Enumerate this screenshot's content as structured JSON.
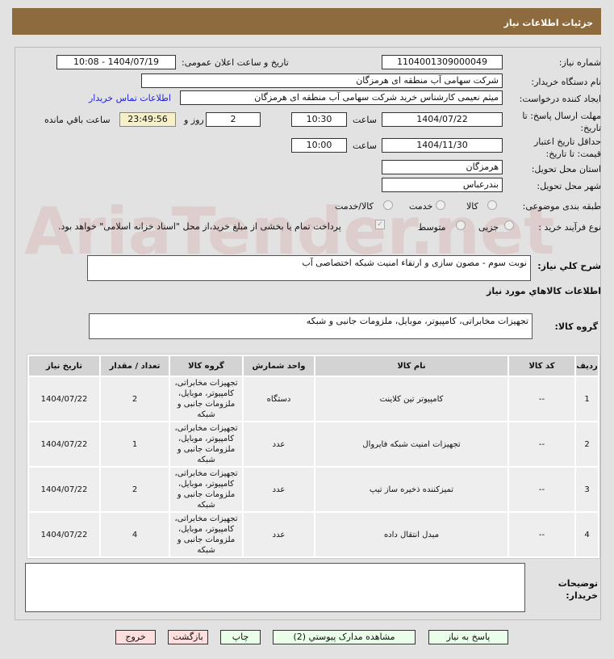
{
  "header": {
    "title": "جزئیات اطلاعات نیاز"
  },
  "watermark": "AriaTender.net",
  "form": {
    "need_number_label": "شماره نیاز:",
    "need_number": "1104001309000049",
    "announce_label": "تاریخ و ساعت اعلان عمومی:",
    "announce_value": "1404/07/19 - 10:08",
    "buyer_label": "نام دستگاه خریدار:",
    "buyer": "شرکت سهامی  آب منطقه ای هرمزگان",
    "creator_label": "ایجاد کننده درخواست:",
    "creator": "میثم نعیمی کارشناس خرید شرکت سهامی  آب منطقه ای هرمزگان",
    "contact_link": "اطلاعات تماس خریدار",
    "deadline_label": "مهلت ارسال پاسخ: تا تاریخ:",
    "deadline_date": "1404/07/22",
    "time_label": "ساعت",
    "deadline_time": "10:30",
    "days": "2",
    "days_label": "روز و",
    "remaining": "23:49:56",
    "remaining_label": "ساعت باقي مانده",
    "validity_label": "حداقل تاریخ اعتبار قیمت: تا تاریخ:",
    "validity_date": "1404/11/30",
    "validity_time": "10:00",
    "province_label": "استان محل تحویل:",
    "province": "هرمزگان",
    "city_label": "شهر محل تحویل:",
    "city": "بندرعباس",
    "category_label": "طبقه بندی موضوعی:",
    "category_options": [
      "کالا",
      "خدمت",
      "کالا/خدمت"
    ],
    "category_selected": "کالا",
    "process_label": "نوع فرآیند خرید :",
    "process_options": [
      "جزیی",
      "متوسط"
    ],
    "payment_note": "پرداخت تمام یا بخشی از مبلغ خرید،از محل \"اسناد خزانه اسلامی\" خواهد بود.",
    "payment_checked": true,
    "description_label": "شرح کلي نياز:",
    "description": "نوبت سوم - مصون سازی و ارتقاء امنیت شبکه اختصاصی آب",
    "goods_info_title": "اطلاعات کالاهاي مورد نياز",
    "group_label": "گروه کالا:",
    "group": "تجهیزات مخابراتی، کامپیوتر، موبایل، ملزومات جانبی و شبکه"
  },
  "table": {
    "headers": [
      "ردیف",
      "کد کالا",
      "نام کالا",
      "واحد شمارش",
      "گروه کالا",
      "تعداد / مقدار",
      "تاریخ نیاز"
    ],
    "rows": [
      [
        "1",
        "--",
        "کامپیوتر تین کلاینت",
        "دستگاه",
        "تجهیزات مخابراتی، کامپیوتر، موبایل، ملزومات جانبی و شبکه",
        "2",
        "1404/07/22"
      ],
      [
        "2",
        "--",
        "تجهیزات امنیت شبکه فایروال",
        "عدد",
        "تجهیزات مخابراتی، کامپیوتر، موبایل، ملزومات جانبی و شبکه",
        "1",
        "1404/07/22"
      ],
      [
        "3",
        "--",
        "تمیزکننده ذخیره ساز تیپ",
        "عدد",
        "تجهیزات مخابراتی، کامپیوتر، موبایل، ملزومات جانبی و شبکه",
        "2",
        "1404/07/22"
      ],
      [
        "4",
        "--",
        "مبدل انتقال داده",
        "عدد",
        "تجهیزات مخابراتی، کامپیوتر، موبایل، ملزومات جانبی و شبکه",
        "4",
        "1404/07/22"
      ]
    ]
  },
  "notes": {
    "label": "توضیحات خریدار:",
    "value": ""
  },
  "buttons": {
    "reply": "پاسخ به نیاز",
    "docs": "مشاهده مدارک پیوستي (2)",
    "print": "چاپ",
    "back": "بازگشت",
    "exit": "خروج"
  }
}
